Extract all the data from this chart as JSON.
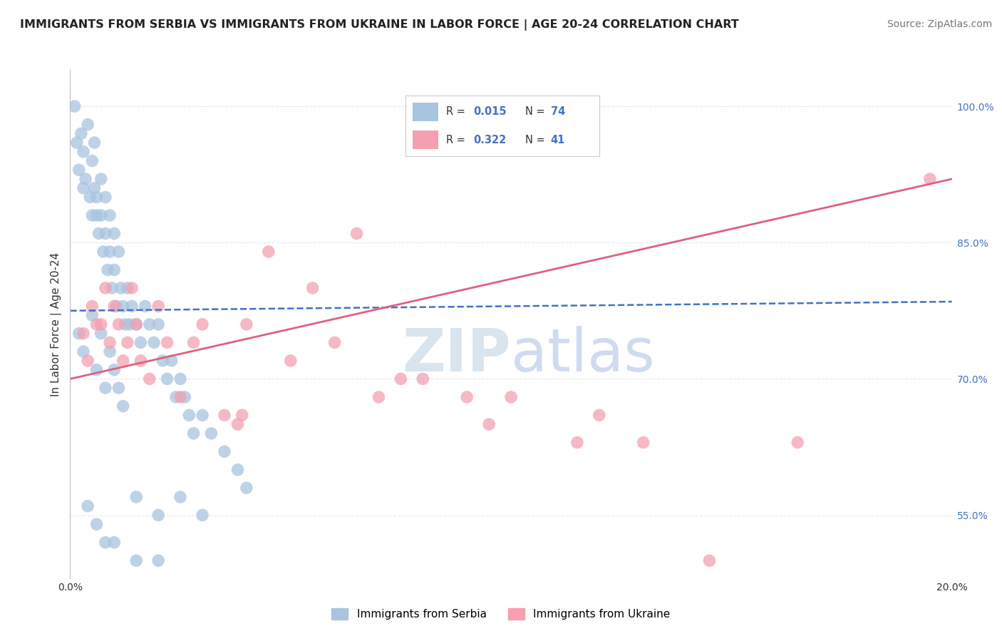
{
  "title": "IMMIGRANTS FROM SERBIA VS IMMIGRANTS FROM UKRAINE IN LABOR FORCE | AGE 20-24 CORRELATION CHART",
  "source": "Source: ZipAtlas.com",
  "ylabel": "In Labor Force | Age 20-24",
  "xlim": [
    0.0,
    20.0
  ],
  "ylim": [
    48.0,
    104.0
  ],
  "yticks": [
    55.0,
    70.0,
    85.0,
    100.0
  ],
  "xticks": [
    0.0,
    4.0,
    8.0,
    12.0,
    16.0,
    20.0
  ],
  "xtick_labels": [
    "0.0%",
    "",
    "",
    "",
    "",
    "20.0%"
  ],
  "serbia_color": "#a8c4e0",
  "ukraine_color": "#f4a0b0",
  "serbia_line_color": "#4472c4",
  "ukraine_line_color": "#e06080",
  "serbia_R": 0.015,
  "serbia_N": 74,
  "ukraine_R": 0.322,
  "ukraine_N": 41,
  "watermark": "ZIPatlas",
  "watermark_color": "#c8d8ea",
  "serbia_scatter_x": [
    0.1,
    0.15,
    0.2,
    0.25,
    0.3,
    0.3,
    0.35,
    0.4,
    0.45,
    0.5,
    0.5,
    0.55,
    0.55,
    0.6,
    0.6,
    0.65,
    0.7,
    0.7,
    0.75,
    0.8,
    0.8,
    0.85,
    0.9,
    0.9,
    0.95,
    1.0,
    1.0,
    1.05,
    1.1,
    1.15,
    1.2,
    1.25,
    1.3,
    1.35,
    1.4,
    1.5,
    1.6,
    1.7,
    1.8,
    1.9,
    2.0,
    2.1,
    2.2,
    2.3,
    2.4,
    2.5,
    2.6,
    2.7,
    2.8,
    3.0,
    3.2,
    3.5,
    3.8,
    4.0,
    0.2,
    0.3,
    0.5,
    0.6,
    0.7,
    0.8,
    0.9,
    1.0,
    1.1,
    1.2,
    1.5,
    2.0,
    2.5,
    3.0,
    0.4,
    0.6,
    0.8,
    1.0,
    1.5,
    2.0
  ],
  "serbia_scatter_y": [
    100.0,
    96.0,
    93.0,
    97.0,
    91.0,
    95.0,
    92.0,
    98.0,
    90.0,
    94.0,
    88.0,
    91.0,
    96.0,
    90.0,
    88.0,
    86.0,
    92.0,
    88.0,
    84.0,
    90.0,
    86.0,
    82.0,
    88.0,
    84.0,
    80.0,
    86.0,
    82.0,
    78.0,
    84.0,
    80.0,
    78.0,
    76.0,
    80.0,
    76.0,
    78.0,
    76.0,
    74.0,
    78.0,
    76.0,
    74.0,
    76.0,
    72.0,
    70.0,
    72.0,
    68.0,
    70.0,
    68.0,
    66.0,
    64.0,
    66.0,
    64.0,
    62.0,
    60.0,
    58.0,
    75.0,
    73.0,
    77.0,
    71.0,
    75.0,
    69.0,
    73.0,
    71.0,
    69.0,
    67.0,
    57.0,
    55.0,
    57.0,
    55.0,
    56.0,
    54.0,
    52.0,
    52.0,
    50.0,
    50.0
  ],
  "ukraine_scatter_x": [
    0.3,
    0.5,
    0.7,
    0.8,
    0.9,
    1.0,
    1.1,
    1.2,
    1.4,
    1.5,
    1.6,
    2.0,
    2.2,
    2.5,
    3.0,
    3.5,
    3.8,
    3.9,
    4.5,
    5.5,
    6.5,
    7.0,
    7.5,
    9.0,
    9.5,
    11.5,
    13.0,
    14.5,
    16.5,
    19.5,
    0.4,
    0.6,
    1.3,
    1.8,
    2.8,
    4.0,
    5.0,
    6.0,
    8.0,
    10.0,
    12.0
  ],
  "ukraine_scatter_y": [
    75.0,
    78.0,
    76.0,
    80.0,
    74.0,
    78.0,
    76.0,
    72.0,
    80.0,
    76.0,
    72.0,
    78.0,
    74.0,
    68.0,
    76.0,
    66.0,
    65.0,
    66.0,
    84.0,
    80.0,
    86.0,
    68.0,
    70.0,
    68.0,
    65.0,
    63.0,
    63.0,
    50.0,
    63.0,
    92.0,
    72.0,
    76.0,
    74.0,
    70.0,
    74.0,
    76.0,
    72.0,
    74.0,
    70.0,
    68.0,
    66.0
  ],
  "grid_color": "#e0e8f0",
  "background_color": "#ffffff",
  "legend_serbia_label": "Immigrants from Serbia",
  "legend_ukraine_label": "Immigrants from Ukraine",
  "serbia_line_y0": 77.5,
  "serbia_line_y1": 78.5,
  "ukraine_line_y0": 70.0,
  "ukraine_line_y1": 92.0
}
